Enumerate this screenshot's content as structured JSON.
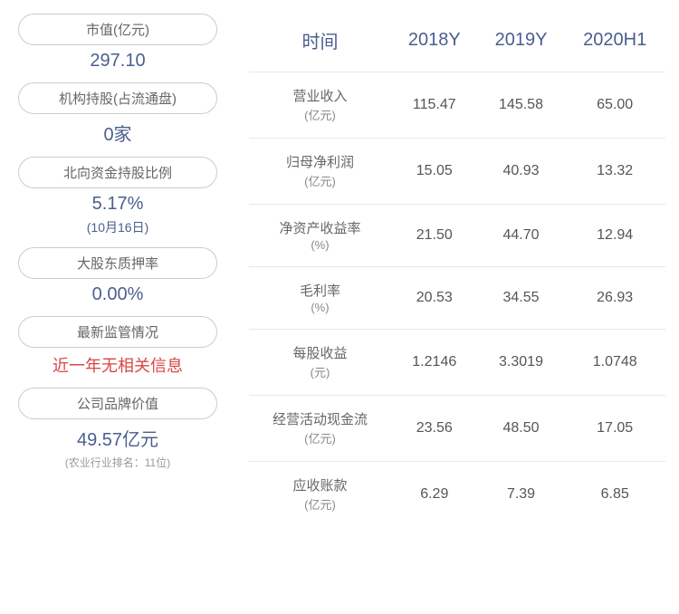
{
  "left_panel": {
    "cards": [
      {
        "label": "市值(亿元)",
        "value": "297.10",
        "value_color": "#4a5f8e"
      },
      {
        "label": "机构持股(占流通盘)",
        "value": "0家",
        "value_color": "#4a5f8e"
      },
      {
        "label": "北向资金持股比例",
        "value": "5.17%",
        "subvalue": "(10月16日)",
        "value_color": "#4a5f8e"
      },
      {
        "label": "大股东质押率",
        "value": "0.00%",
        "value_color": "#4a5f8e"
      },
      {
        "label": "最新监管情况",
        "value": "近一年无相关信息",
        "value_color": "#d94545"
      },
      {
        "label": "公司品牌价值",
        "value": "49.57亿元",
        "note": "(农业行业排名：11位)",
        "value_color": "#4a5f8e"
      }
    ]
  },
  "table": {
    "headers": [
      "时间",
      "2018Y",
      "2019Y",
      "2020H1"
    ],
    "header_color": "#4a5f8e",
    "header_fontsize": 20,
    "cell_color": "#555555",
    "cell_fontsize": 16,
    "border_color": "#e8e8e8",
    "background_color": "#ffffff",
    "rows": [
      {
        "metric": "营业收入",
        "unit": "(亿元)",
        "values": [
          "115.47",
          "145.58",
          "65.00"
        ]
      },
      {
        "metric": "归母净利润",
        "unit": "(亿元)",
        "values": [
          "15.05",
          "40.93",
          "13.32"
        ]
      },
      {
        "metric": "净资产收益率",
        "unit": "(%)",
        "values": [
          "21.50",
          "44.70",
          "12.94"
        ]
      },
      {
        "metric": "毛利率",
        "unit": "(%)",
        "values": [
          "20.53",
          "34.55",
          "26.93"
        ]
      },
      {
        "metric": "每股收益",
        "unit": "(元)",
        "values": [
          "1.2146",
          "3.3019",
          "1.0748"
        ]
      },
      {
        "metric": "经营活动现金流",
        "unit": "(亿元)",
        "values": [
          "23.56",
          "48.50",
          "17.05"
        ]
      },
      {
        "metric": "应收账款",
        "unit": "(亿元)",
        "values": [
          "6.29",
          "7.39",
          "6.85"
        ]
      }
    ]
  }
}
